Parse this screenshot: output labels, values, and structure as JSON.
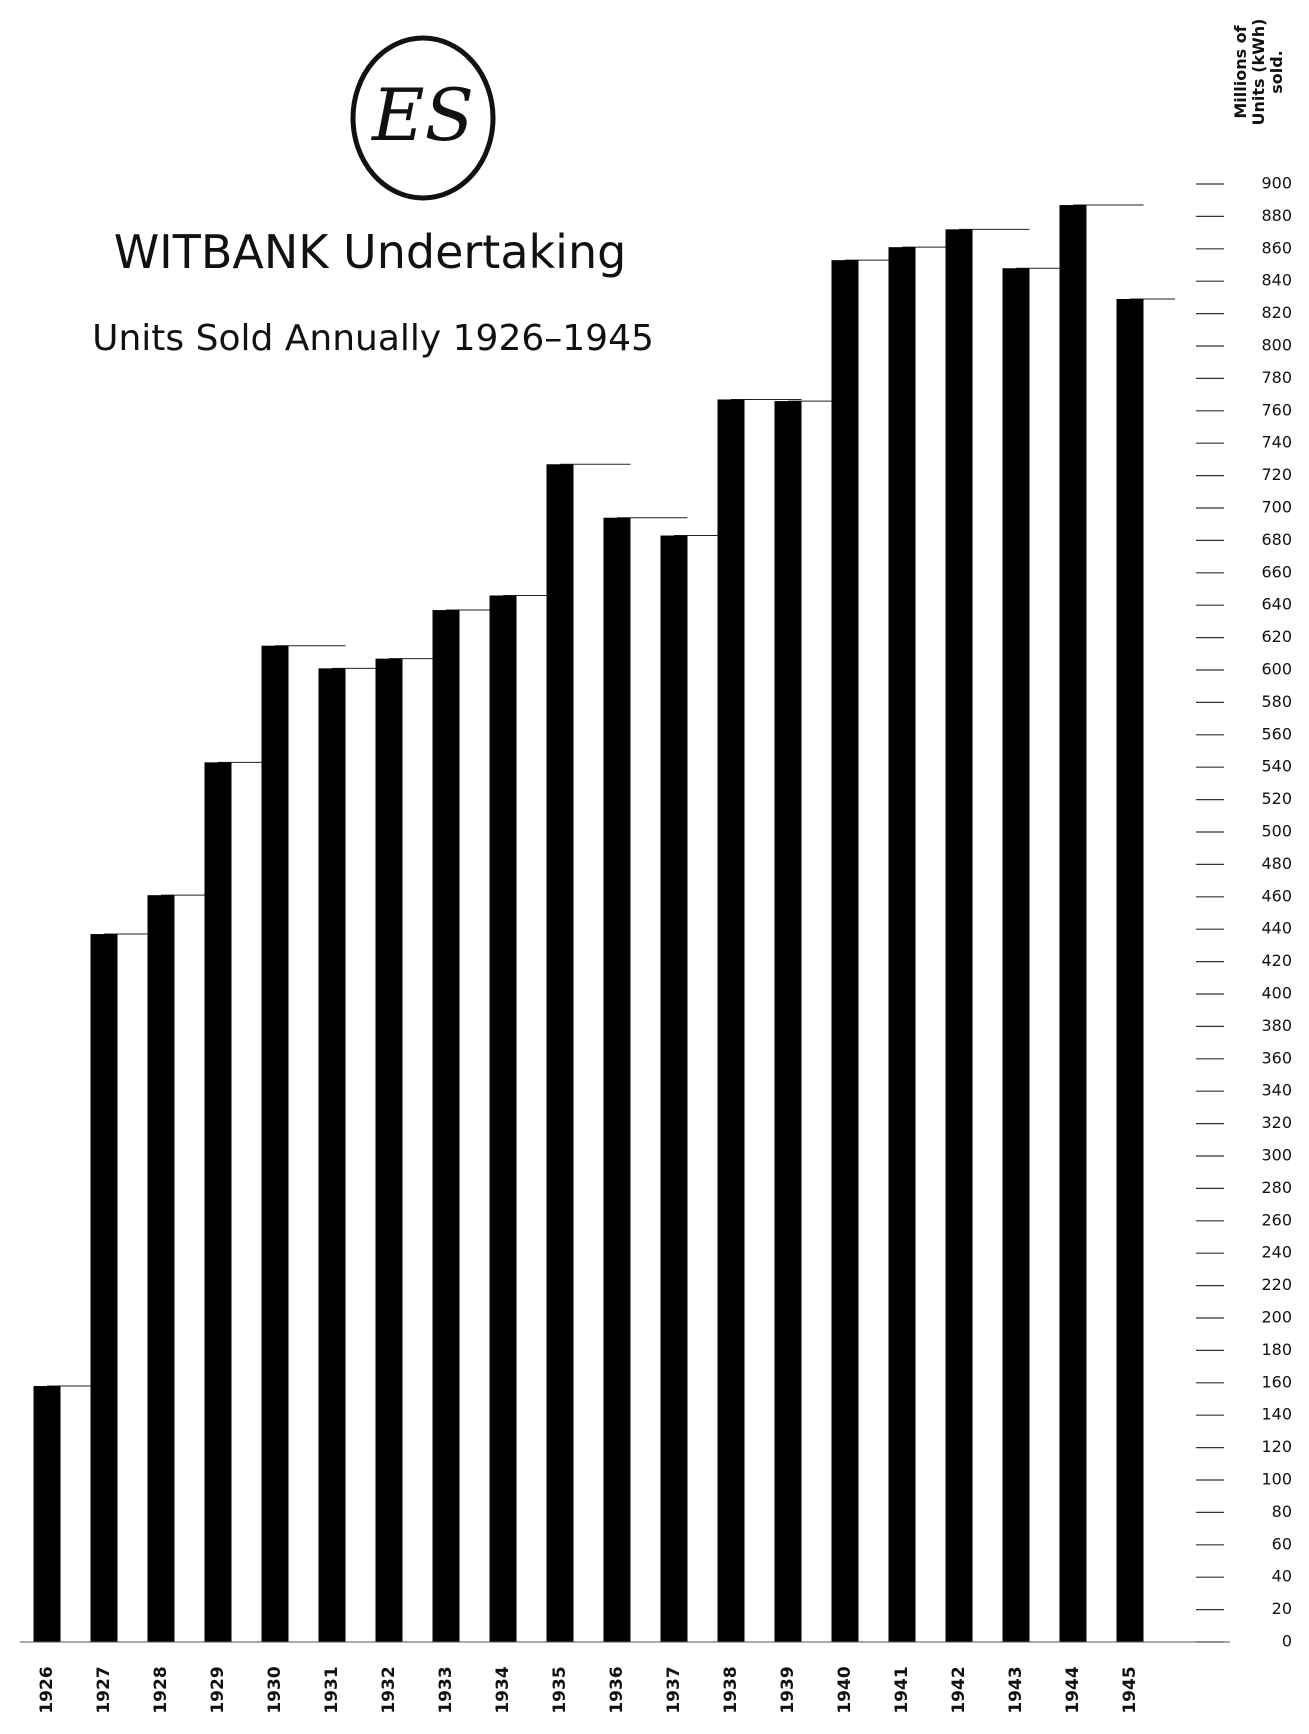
{
  "chart_data": {
    "type": "bar",
    "logo": "ES",
    "title": "WITBANK Undertaking",
    "subtitle": "Units Sold Annually 1926–1945",
    "y_label": [
      "Millions of",
      "Units (kWh)",
      "sold."
    ],
    "categories": [
      "1926",
      "1927",
      "1928",
      "1929",
      "1930",
      "1931",
      "1932",
      "1933",
      "1934",
      "1935",
      "1936",
      "1937",
      "1938",
      "1939",
      "1940",
      "1941",
      "1942",
      "1943",
      "1944",
      "1945"
    ],
    "values": [
      158,
      437,
      461,
      543,
      615,
      601,
      607,
      637,
      646,
      727,
      694,
      683,
      767,
      766,
      853,
      861,
      872,
      848,
      887,
      829
    ],
    "color": "#000000",
    "ylim": [
      0,
      900
    ],
    "yticks": [
      0,
      20,
      40,
      60,
      80,
      100,
      120,
      140,
      160,
      180,
      200,
      220,
      240,
      260,
      280,
      300,
      320,
      340,
      360,
      380,
      400,
      420,
      440,
      460,
      480,
      500,
      520,
      540,
      560,
      580,
      600,
      620,
      640,
      660,
      680,
      700,
      720,
      740,
      760,
      780,
      800,
      820,
      840,
      860,
      880,
      900
    ],
    "grid": true
  }
}
